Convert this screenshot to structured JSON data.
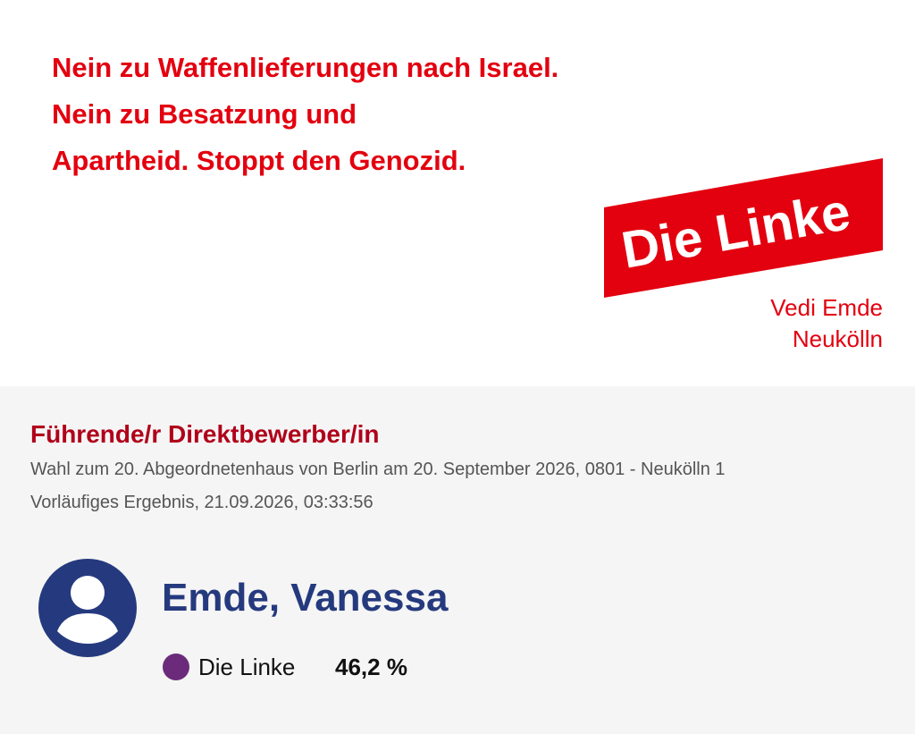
{
  "banner": {
    "slogan": [
      "Nein zu Waffenlieferungen nach Israel.",
      "Nein zu Besatzung und",
      "Apartheid. Stoppt den Genozid."
    ],
    "logo": "Die Linke",
    "candidate": "Vedi Emde",
    "district": "Neukölln"
  },
  "result": {
    "heading": "Führende/r Direktbewerber/in",
    "election": "Wahl zum 20. Abgeordnetenhaus von Berlin am 20. September 2026, 0801 - Neukölln 1",
    "status": "Vorläufiges Ergebnis, 21.09.2026, 03:33:56",
    "name": "Emde, Vanessa",
    "party": "Die Linke",
    "share": "46,2 %"
  }
}
